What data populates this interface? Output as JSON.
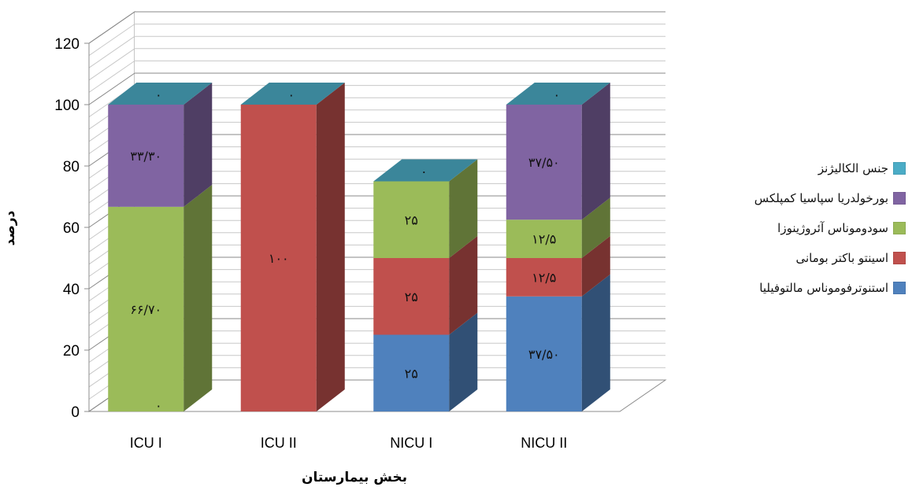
{
  "chart_data": {
    "type": "bar",
    "stacked": true,
    "three_d": true,
    "title": "",
    "xlabel": "بخش بیمارستان",
    "ylabel": "درصد",
    "ylim": [
      0,
      120
    ],
    "yticks": [
      "0",
      "20",
      "40",
      "60",
      "80",
      "100",
      "120"
    ],
    "grid": true,
    "legend_position": "right",
    "categories": [
      "ICU I",
      "ICU II",
      "NICU I",
      "NICU II"
    ],
    "series": [
      {
        "name": "استنوترفوموناس مالتوفیلیا",
        "color": "#4F81BD",
        "values": [
          0,
          0,
          25,
          37.5
        ],
        "labels": [
          "",
          "",
          "۲۵",
          "۳۷/۵۰"
        ]
      },
      {
        "name": "اسینتو باکتر بومانی",
        "color": "#C0504D",
        "values": [
          0,
          100,
          25,
          12.5
        ],
        "labels": [
          "۰",
          "۱۰۰",
          "۲۵",
          "۱۲/۵"
        ]
      },
      {
        "name": "سودوموناس آئروژینوزا",
        "color": "#9BBB59",
        "values": [
          66.7,
          0,
          25,
          12.5
        ],
        "labels": [
          "۶۶/۷۰",
          "",
          "۲۵",
          "۱۲/۵"
        ]
      },
      {
        "name": "بورخولدریا سپاسیا کمپلکس",
        "color": "#8064A2",
        "values": [
          33.3,
          0,
          0,
          37.5
        ],
        "labels": [
          "۳۳/۳۰",
          "",
          "",
          "۳۷/۵۰"
        ]
      },
      {
        "name": "جنس الکالیژنز",
        "color": "#4BACC6",
        "values": [
          0,
          0,
          0,
          0
        ],
        "labels": [
          "۰",
          "۰",
          "۰",
          "۰"
        ]
      }
    ]
  }
}
